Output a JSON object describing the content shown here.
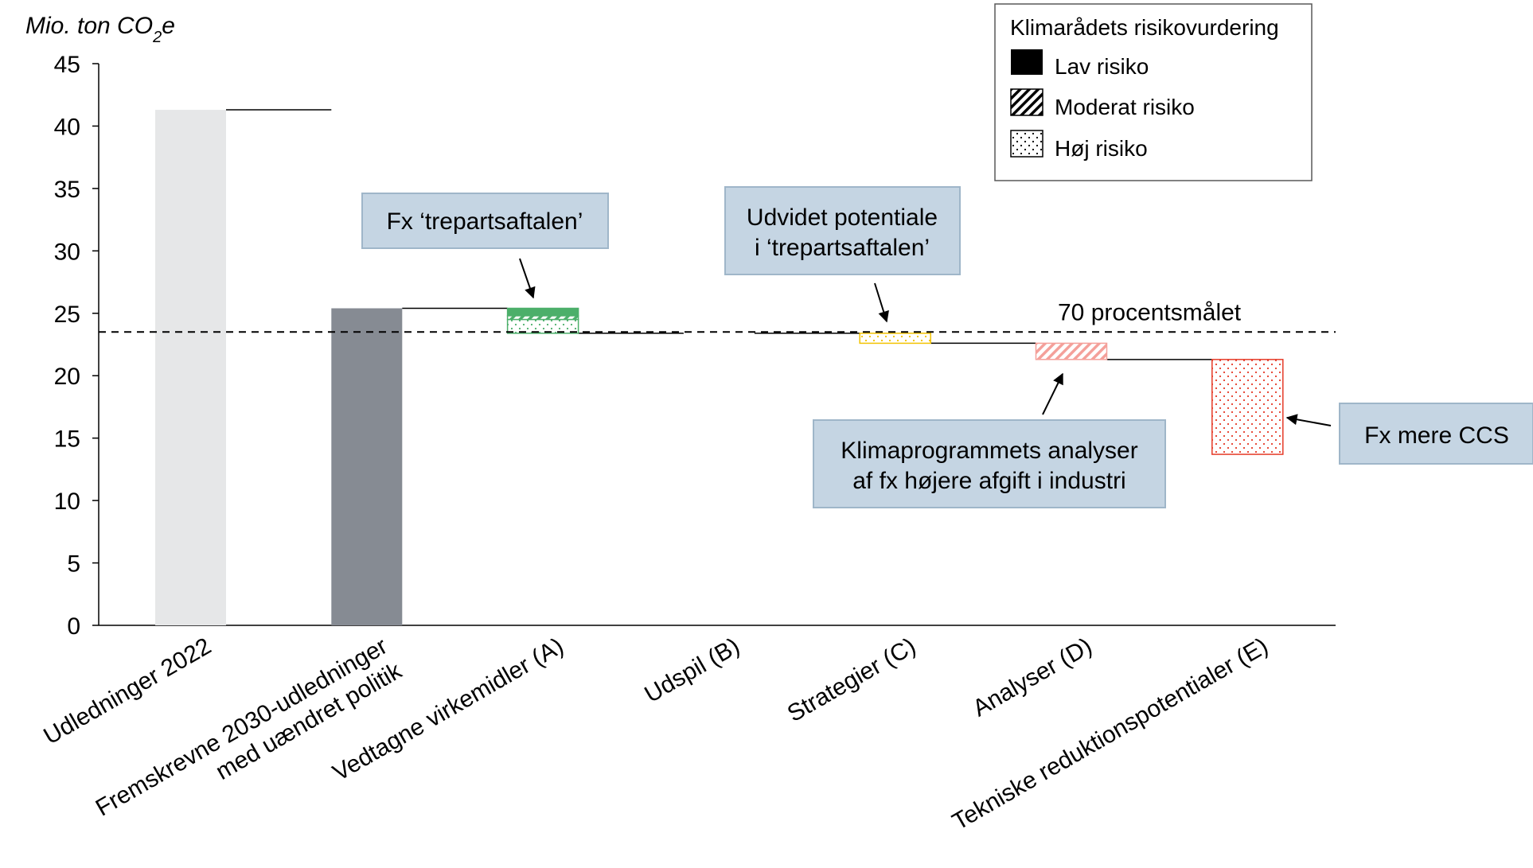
{
  "chart_data": {
    "type": "bar",
    "ylabel": "Mio. ton CO",
    "ylabel_sub": "2",
    "ylabel_tail": "e",
    "ylim": [
      0,
      45
    ],
    "yticks": [
      0,
      5,
      10,
      15,
      20,
      25,
      30,
      35,
      40,
      45
    ],
    "categories": [
      [
        "Udledninger 2022"
      ],
      [
        "Fremskrevne 2030-udledninger",
        "med uændret politik"
      ],
      [
        "Vedtagne virkemidler (A)"
      ],
      [
        "Udspil (B)"
      ],
      [
        "Strategier (C)"
      ],
      [
        "Analyser (D)"
      ],
      [
        "Tekniske reduktionspotentialer (E)"
      ]
    ],
    "bars": [
      {
        "kind": "total",
        "value": 41.3,
        "color": "#e6e7e8"
      },
      {
        "kind": "total",
        "value": 25.4,
        "color": "#868b93"
      },
      {
        "kind": "reduction",
        "from": 25.4,
        "to": 23.4,
        "color": "#4caf6a",
        "segments": [
          {
            "risk": "low",
            "from": 25.4,
            "to": 24.8
          },
          {
            "risk": "moderate",
            "from": 24.8,
            "to": 24.5
          },
          {
            "risk": "high",
            "from": 24.5,
            "to": 23.4
          }
        ]
      },
      {
        "kind": "reduction",
        "from": 23.4,
        "to": 23.4,
        "color": "#000000",
        "segments": []
      },
      {
        "kind": "reduction",
        "from": 23.4,
        "to": 22.6,
        "color": "#f2c200",
        "segments": [
          {
            "risk": "high",
            "from": 23.4,
            "to": 22.6
          }
        ]
      },
      {
        "kind": "reduction",
        "from": 22.6,
        "to": 21.3,
        "color": "#f4a09a",
        "segments": [
          {
            "risk": "moderate",
            "from": 22.6,
            "to": 21.3
          }
        ]
      },
      {
        "kind": "reduction",
        "from": 21.3,
        "to": 13.7,
        "color": "#e53a27",
        "segments": [
          {
            "risk": "high",
            "from": 21.3,
            "to": 13.7
          }
        ]
      }
    ],
    "target": {
      "value": 23.5,
      "label": "70 procentsmålet"
    },
    "grid": false,
    "legend_position": "top-right"
  },
  "legend": {
    "title": "Klimarådets risikovurdering",
    "items": [
      {
        "label": "Lav risiko",
        "pattern": "solid"
      },
      {
        "label": "Moderat risiko",
        "pattern": "hatch"
      },
      {
        "label": "Høj risiko",
        "pattern": "dots"
      }
    ]
  },
  "callouts": [
    {
      "lines": [
        "Fx ‘trepartsaftalen’"
      ],
      "target_bar": 2
    },
    {
      "lines": [
        "Udvidet potentiale",
        "i ‘trepartsaftalen’"
      ],
      "target_bar": 4
    },
    {
      "lines": [
        "Klimaprogrammets analyser",
        "af fx højere afgift i industri"
      ],
      "target_bar": 5
    },
    {
      "lines": [
        "Fx mere CCS"
      ],
      "target_bar": 6
    }
  ],
  "colors": {
    "callout_fill": "#c5d5e3",
    "callout_border": "#9fb6c9",
    "axis": "#000000"
  }
}
